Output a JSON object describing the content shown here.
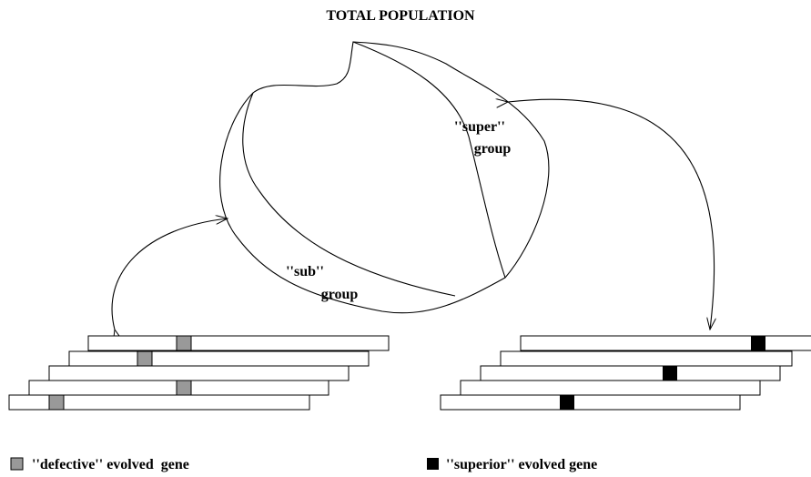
{
  "title": "TOTAL POPULATION",
  "groups": [
    {
      "line1": "''super''",
      "line2": "group"
    },
    {
      "line1": "''sub''",
      "line2": "group"
    }
  ],
  "legend": [
    {
      "label": "''defective'' evolved  gene"
    },
    {
      "label": "''superior'' evolved gene"
    }
  ]
}
